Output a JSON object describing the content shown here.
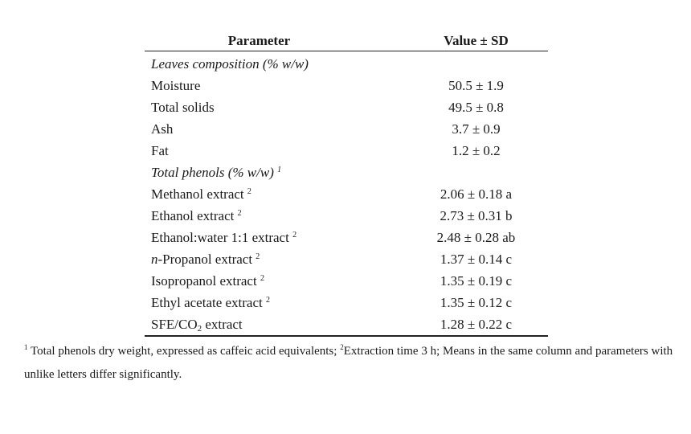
{
  "table": {
    "headers": {
      "parameter": "Parameter",
      "value": "Value ± SD"
    },
    "sections": [
      {
        "title": "Leaves composition (% w/w)",
        "title_sup": "",
        "rows": [
          {
            "label": "Moisture",
            "label_sup": "",
            "value": "50.5 ± 1.9"
          },
          {
            "label": "Total solids",
            "label_sup": "",
            "value": "49.5 ± 0.8"
          },
          {
            "label": "Ash",
            "label_sup": "",
            "value": "3.7 ± 0.9"
          },
          {
            "label": "Fat",
            "label_sup": "",
            "value": "1.2 ± 0.2"
          }
        ]
      },
      {
        "title": "Total phenols (% w/w)",
        "title_sup": "1",
        "rows": [
          {
            "label": "Methanol extract",
            "label_sup": "2",
            "value": "2.06 ± 0.18 a"
          },
          {
            "label": "Ethanol extract",
            "label_sup": "2",
            "value": "2.73 ± 0.31 b"
          },
          {
            "label": "Ethanol:water 1:1 extract",
            "label_sup": "2",
            "value": "2.48 ± 0.28 ab"
          },
          {
            "label_prefix_italic": "n",
            "label": "-Propanol extract",
            "label_sup": "2",
            "value": "1.37 ± 0.14 c"
          },
          {
            "label": "Isopropanol extract",
            "label_sup": "2",
            "value": "1.35 ± 0.19 c"
          },
          {
            "label": "Ethyl acetate extract",
            "label_sup": "2",
            "value": "1.35 ± 0.12 c"
          },
          {
            "label": "SFE/CO",
            "label_sub": "2",
            "label_suffix": " extract",
            "value": "1.28 ± 0.22 c"
          }
        ]
      }
    ]
  },
  "footnote": {
    "sup1": "1",
    "text1": " Total phenols dry weight, expressed as caffeic acid equivalents; ",
    "sup2": "2",
    "text2": "Extraction time 3 h; Means in the same column and parameters with unlike letters differ significantly."
  }
}
